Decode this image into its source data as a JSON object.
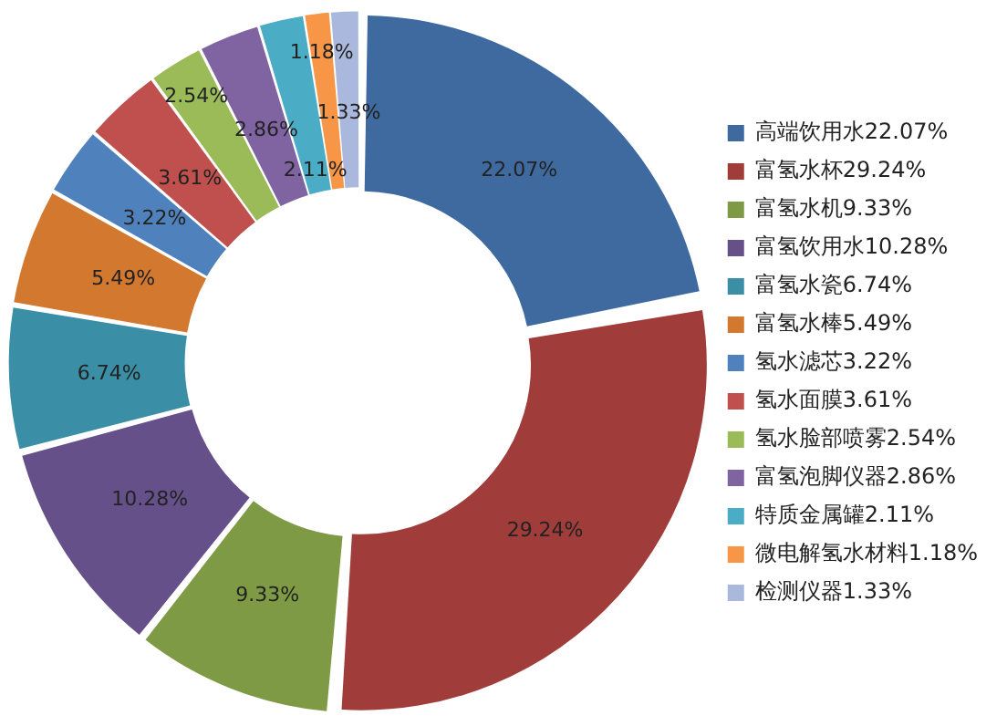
{
  "chart_data": {
    "type": "donut",
    "categories": [
      "高端饮用水22.07%",
      "富氢水杯29.24%",
      "富氢水机9.33%",
      "富氢饮用水10.28%",
      "富氢水瓷6.74%",
      "富氢水棒5.49%",
      "氢水滤芯3.22%",
      "氢水面膜3.61%",
      "氢水脸部喷雾2.54%",
      "富氢泡脚仪器2.86%",
      "特质金属罐2.11%",
      "微电解氢水材料1.18%",
      "检测仪器1.33%"
    ],
    "values": [
      22.07,
      29.24,
      9.33,
      10.28,
      6.74,
      5.49,
      3.22,
      3.61,
      2.54,
      2.86,
      2.11,
      1.18,
      1.33
    ],
    "value_labels": [
      "22.07%",
      "29.24%",
      "9.33%",
      "10.28%",
      "6.74%",
      "5.49%",
      "3.22%",
      "3.61%",
      "2.54%",
      "2.86%",
      "2.11%",
      "1.18%",
      "1.33%"
    ],
    "colors": [
      "#3e6aa0",
      "#a03d3a",
      "#7f9a45",
      "#65508a",
      "#3a8ea5",
      "#d2782f",
      "#4f81bd",
      "#c0504d",
      "#9bbb59",
      "#8064a2",
      "#4bacc6",
      "#f79646",
      "#a9b8dc"
    ],
    "legend": "right"
  }
}
